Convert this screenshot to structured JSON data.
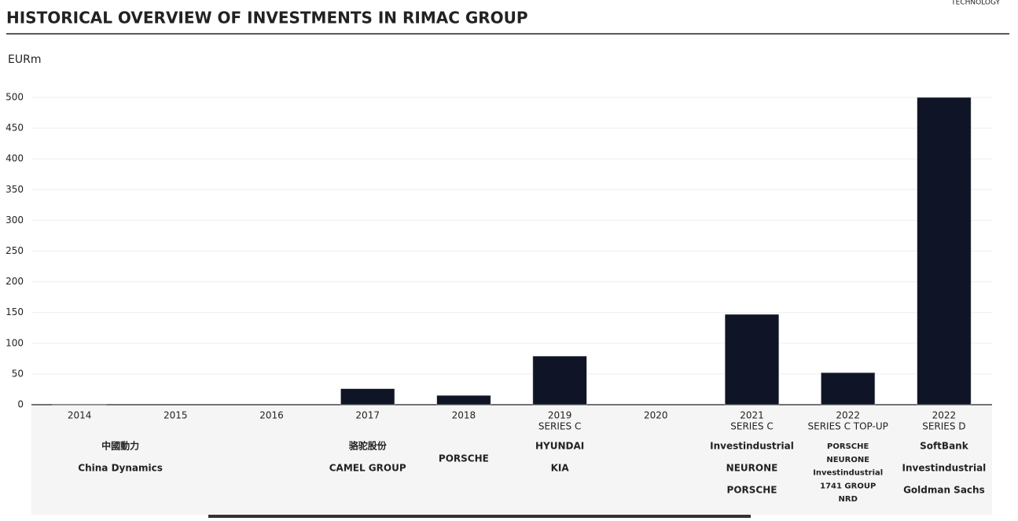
{
  "header": {
    "title": "HISTORICAL OVERVIEW OF INVESTMENTS IN RIMAC GROUP",
    "brand": "TECHNOLOGY"
  },
  "chart_data": {
    "type": "bar",
    "y_label": "EURm",
    "categories": [
      "2014",
      "2015",
      "2016",
      "2017",
      "2018",
      "2019",
      "2020",
      "2021",
      "2022",
      "2022"
    ],
    "category_notes": [
      null,
      null,
      null,
      null,
      null,
      "SERIES C",
      null,
      "SERIES C",
      "SERIES C TOP-UP",
      "SERIES D"
    ],
    "values": [
      1,
      0,
      0,
      26,
      15,
      79,
      0,
      147,
      52,
      500
    ],
    "color": "#0f1526",
    "ylim": [
      0,
      500
    ],
    "yticks": [
      0,
      50,
      100,
      150,
      200,
      250,
      300,
      350,
      400,
      450,
      500
    ],
    "grid": true,
    "investors": [
      [
        "中國動力",
        "China Dynamics"
      ],
      null,
      null,
      [
        "骆驼股份",
        "CAMEL GROUP"
      ],
      [
        "PORSCHE"
      ],
      [
        "HYUNDAI",
        "KIA"
      ],
      null,
      [
        "Investindustrial",
        "NEURONE",
        "PORSCHE"
      ],
      [
        "PORSCHE",
        "NEURONE",
        "Investindustrial",
        "1741 GROUP",
        "NRD"
      ],
      [
        "SoftBank",
        "Investindustrial",
        "Goldman Sachs"
      ]
    ]
  }
}
